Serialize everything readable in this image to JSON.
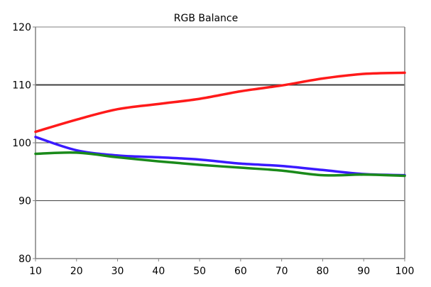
{
  "chart_data": {
    "type": "line",
    "title": "RGB Balance",
    "xlabel": "",
    "ylabel": "",
    "x_ticks": [
      "10",
      "20",
      "30",
      "40",
      "50",
      "60",
      "70",
      "80",
      "90",
      "100"
    ],
    "y_ticks": [
      "80",
      "90",
      "100",
      "110",
      "120"
    ],
    "xlim": [
      10,
      100
    ],
    "ylim": [
      80,
      120
    ],
    "grid": true,
    "legend": "none",
    "x": [
      10,
      20,
      30,
      40,
      50,
      60,
      70,
      80,
      90,
      100
    ],
    "series": [
      {
        "color": "#ff1a1a",
        "values": [
          101.9,
          104.0,
          105.8,
          106.7,
          107.6,
          108.9,
          109.9,
          111.1,
          111.9,
          112.1
        ]
      },
      {
        "color": "#3a1aff",
        "values": [
          101.0,
          98.7,
          97.8,
          97.5,
          97.1,
          96.4,
          96.0,
          95.3,
          94.6,
          94.4
        ]
      },
      {
        "color": "#1a8a1a",
        "values": [
          98.1,
          98.3,
          97.5,
          96.8,
          96.2,
          95.7,
          95.2,
          94.4,
          94.5,
          94.3
        ]
      }
    ],
    "gridline_color": "#404040",
    "axis_color": "#808080"
  }
}
